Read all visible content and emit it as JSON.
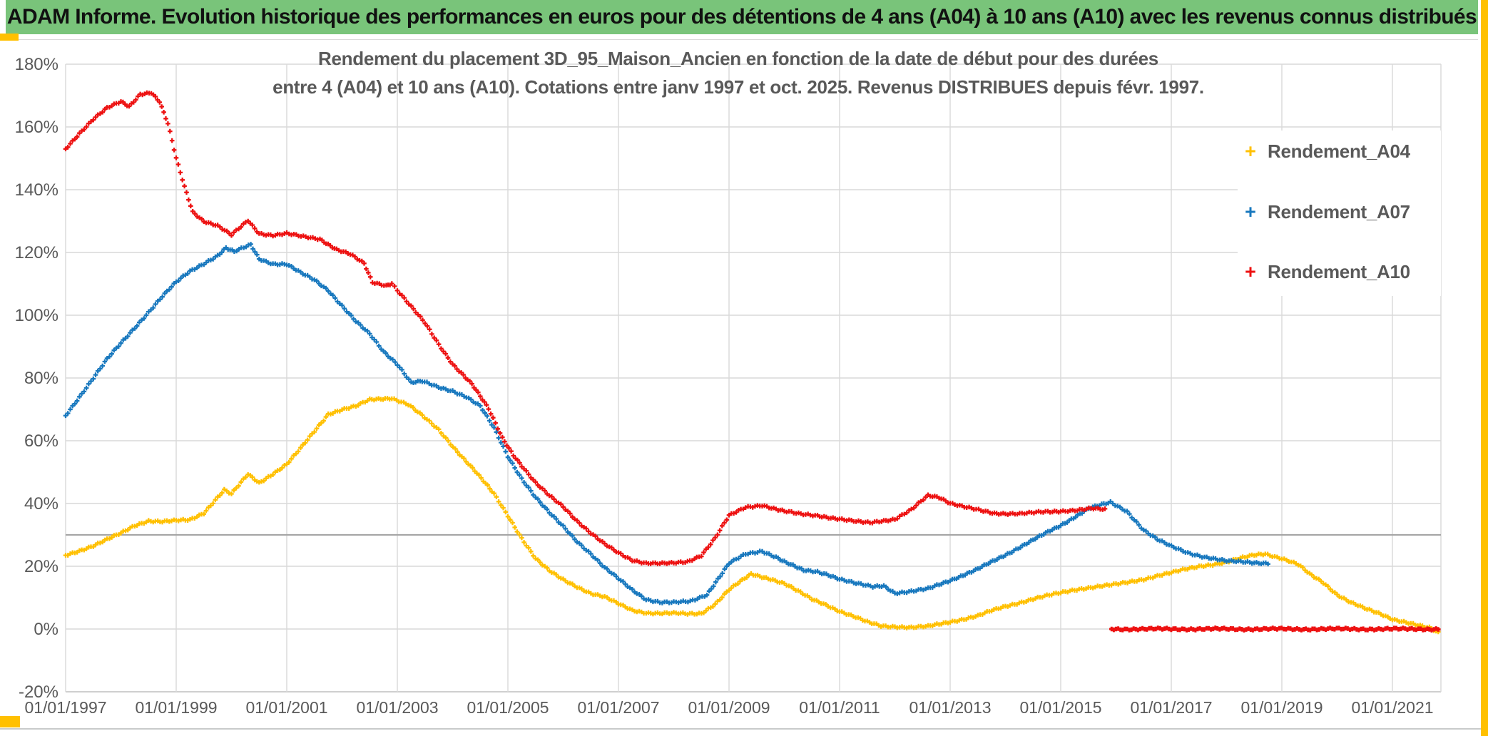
{
  "title_bar": {
    "text": "ADAM Informe. Evolution historique des performances en euros pour des détentions de 4 ans (A04) à 10 ans (A10) avec les revenus connus distribués",
    "bg_color": "#79C47A"
  },
  "frame": {
    "accent_color": "#FFC000"
  },
  "chart_data": {
    "type": "scatter",
    "marker_style": "plus",
    "title_lines": [
      "Rendement du placement 3D_95_Maison_Ancien en fonction de la date de début pour des durées",
      "entre 4 (A04) et 10 ans (A10). Cotations entre janv 1997 et oct. 2025. Revenus DISTRIBUES depuis févr. 1997."
    ],
    "title_color": "#595959",
    "x_axis": {
      "tick_labels": [
        "01/01/1997",
        "01/01/1999",
        "01/01/2001",
        "01/01/2003",
        "01/01/2005",
        "01/01/2007",
        "01/01/2009",
        "01/01/2011",
        "01/01/2013",
        "01/01/2015",
        "01/01/2017",
        "01/01/2019",
        "01/01/2021"
      ],
      "tick_years": [
        1997,
        1999,
        2001,
        2003,
        2005,
        2007,
        2009,
        2011,
        2013,
        2015,
        2017,
        2019,
        2021
      ],
      "min_year": 1997.0,
      "max_year": 2021.87
    },
    "y_axis": {
      "tick_labels": [
        "180%",
        "160%",
        "140%",
        "120%",
        "100%",
        "80%",
        "60%",
        "40%",
        "20%",
        "0%",
        "-20%"
      ],
      "tick_values": [
        180,
        160,
        140,
        120,
        100,
        80,
        60,
        40,
        20,
        0,
        -20
      ],
      "min": -20,
      "max": 180
    },
    "grid": {
      "color": "#D9D9D9",
      "axis_color": "#BFBFBF",
      "reference_line_value": 30,
      "reference_line_color": "#A6A6A6"
    },
    "legend": {
      "position": "right",
      "items": [
        {
          "label": "Rendement_A04",
          "color": "#FFC000"
        },
        {
          "label": "Rendement_A07",
          "color": "#1878BE"
        },
        {
          "label": "Rendement_A10",
          "color": "#ED1111"
        }
      ]
    },
    "series": [
      {
        "name": "Rendement_A04",
        "color": "#FFC000",
        "points": [
          [
            1997.0,
            23.5
          ],
          [
            1997.25,
            25
          ],
          [
            1997.5,
            26.5
          ],
          [
            1997.75,
            28.5
          ],
          [
            1998.0,
            30.5
          ],
          [
            1998.25,
            33
          ],
          [
            1998.5,
            34.5
          ],
          [
            1998.75,
            34.2
          ],
          [
            1999.0,
            34.5
          ],
          [
            1999.25,
            34.8
          ],
          [
            1999.5,
            37
          ],
          [
            1999.75,
            42
          ],
          [
            1999.87,
            44.3
          ],
          [
            2000.0,
            43
          ],
          [
            2000.3,
            49.3
          ],
          [
            2000.5,
            46.6
          ],
          [
            2000.75,
            49.5
          ],
          [
            2001.0,
            52.5
          ],
          [
            2001.25,
            57.5
          ],
          [
            2001.5,
            63
          ],
          [
            2001.75,
            68.5
          ],
          [
            2002.0,
            70
          ],
          [
            2002.25,
            71
          ],
          [
            2002.5,
            73
          ],
          [
            2002.9,
            73.6
          ],
          [
            2003.2,
            71.6
          ],
          [
            2003.45,
            68
          ],
          [
            2003.75,
            63.4
          ],
          [
            2004.05,
            57.3
          ],
          [
            2004.4,
            50.5
          ],
          [
            2004.75,
            43
          ],
          [
            2005.0,
            36.1
          ],
          [
            2005.25,
            29
          ],
          [
            2005.5,
            22.5
          ],
          [
            2005.75,
            18.5
          ],
          [
            2006.0,
            15.7
          ],
          [
            2006.25,
            13.5
          ],
          [
            2006.5,
            11.4
          ],
          [
            2006.75,
            10.2
          ],
          [
            2007.0,
            8
          ],
          [
            2007.25,
            6
          ],
          [
            2007.5,
            5.2
          ],
          [
            2007.75,
            5
          ],
          [
            2008.0,
            5
          ],
          [
            2008.25,
            4.8
          ],
          [
            2008.5,
            5
          ],
          [
            2008.75,
            8
          ],
          [
            2009.0,
            12.5
          ],
          [
            2009.4,
            17.5
          ],
          [
            2009.75,
            16
          ],
          [
            2010.0,
            14.5
          ],
          [
            2010.25,
            12
          ],
          [
            2010.5,
            9.5
          ],
          [
            2010.75,
            7.8
          ],
          [
            2011.0,
            5.7
          ],
          [
            2011.25,
            4
          ],
          [
            2011.5,
            2.2
          ],
          [
            2011.75,
            1
          ],
          [
            2012.0,
            0.8
          ],
          [
            2012.3,
            0.5
          ],
          [
            2012.6,
            0.8
          ],
          [
            2013.0,
            2.3
          ],
          [
            2013.25,
            3.2
          ],
          [
            2013.5,
            4.2
          ],
          [
            2013.75,
            5.8
          ],
          [
            2014.0,
            7.2
          ],
          [
            2014.25,
            8.4
          ],
          [
            2014.5,
            9.6
          ],
          [
            2014.75,
            10.6
          ],
          [
            2015.0,
            11.5
          ],
          [
            2015.25,
            12.5
          ],
          [
            2015.5,
            13.2
          ],
          [
            2015.75,
            13.7
          ],
          [
            2016.0,
            14.2
          ],
          [
            2016.25,
            15
          ],
          [
            2016.5,
            15.9
          ],
          [
            2016.75,
            17
          ],
          [
            2017.0,
            17.9
          ],
          [
            2017.25,
            19
          ],
          [
            2017.5,
            20
          ],
          [
            2017.75,
            20.6
          ],
          [
            2018.0,
            21.3
          ],
          [
            2018.25,
            22.5
          ],
          [
            2018.5,
            23.6
          ],
          [
            2018.7,
            24
          ],
          [
            2019.0,
            22.5
          ],
          [
            2019.3,
            20.5
          ],
          [
            2019.5,
            17.5
          ],
          [
            2019.75,
            14.8
          ],
          [
            2020.0,
            11
          ],
          [
            2020.25,
            8.5
          ],
          [
            2020.5,
            6.5
          ],
          [
            2020.75,
            5
          ],
          [
            2021.0,
            3.2
          ],
          [
            2021.25,
            2.2
          ],
          [
            2021.5,
            1
          ],
          [
            2021.67,
            0.3
          ],
          [
            2021.83,
            -1.2
          ]
        ]
      },
      {
        "name": "Rendement_A07",
        "color": "#1878BE",
        "points": [
          [
            1997.0,
            68
          ],
          [
            1997.25,
            74
          ],
          [
            1997.5,
            80
          ],
          [
            1997.75,
            86
          ],
          [
            1998.0,
            91
          ],
          [
            1998.25,
            96
          ],
          [
            1998.5,
            101
          ],
          [
            1998.75,
            106
          ],
          [
            1999.0,
            110.5
          ],
          [
            1999.25,
            114
          ],
          [
            1999.5,
            116.5
          ],
          [
            1999.75,
            119
          ],
          [
            1999.9,
            121.4
          ],
          [
            2000.05,
            120.2
          ],
          [
            2000.35,
            122.5
          ],
          [
            2000.5,
            118
          ],
          [
            2000.75,
            116.4
          ],
          [
            2001.0,
            116.2
          ],
          [
            2001.25,
            113.5
          ],
          [
            2001.5,
            111.3
          ],
          [
            2001.75,
            108
          ],
          [
            2002.0,
            103
          ],
          [
            2002.25,
            98
          ],
          [
            2002.5,
            94
          ],
          [
            2002.75,
            88.5
          ],
          [
            2003.0,
            84.5
          ],
          [
            2003.25,
            78.5
          ],
          [
            2003.45,
            78.9
          ],
          [
            2003.75,
            77
          ],
          [
            2004.0,
            75.9
          ],
          [
            2004.25,
            74
          ],
          [
            2004.5,
            71
          ],
          [
            2004.75,
            64
          ],
          [
            2005.0,
            55
          ],
          [
            2005.25,
            48
          ],
          [
            2005.5,
            42
          ],
          [
            2005.75,
            37
          ],
          [
            2006.0,
            32.7
          ],
          [
            2006.25,
            28
          ],
          [
            2006.5,
            24
          ],
          [
            2006.75,
            19.5
          ],
          [
            2007.0,
            16
          ],
          [
            2007.25,
            12.5
          ],
          [
            2007.5,
            9.5
          ],
          [
            2007.75,
            8.5
          ],
          [
            2008.0,
            8.4
          ],
          [
            2008.3,
            8.8
          ],
          [
            2008.6,
            11
          ],
          [
            2009.0,
            20.9
          ],
          [
            2009.3,
            23.8
          ],
          [
            2009.6,
            24.8
          ],
          [
            2009.85,
            23
          ],
          [
            2010.0,
            21.5
          ],
          [
            2010.35,
            18.6
          ],
          [
            2010.6,
            18.2
          ],
          [
            2010.8,
            17.3
          ],
          [
            2011.0,
            16
          ],
          [
            2011.3,
            14.5
          ],
          [
            2011.6,
            13.4
          ],
          [
            2011.8,
            13.8
          ],
          [
            2012.0,
            11.5
          ],
          [
            2012.3,
            12
          ],
          [
            2012.6,
            12.8
          ],
          [
            2013.0,
            15.5
          ],
          [
            2013.5,
            19.1
          ],
          [
            2014.0,
            23.6
          ],
          [
            2014.5,
            28.4
          ],
          [
            2015.0,
            33
          ],
          [
            2015.5,
            38.4
          ],
          [
            2015.9,
            40.3
          ],
          [
            2016.2,
            37.5
          ],
          [
            2016.5,
            31.6
          ],
          [
            2016.75,
            28.5
          ],
          [
            2017.0,
            26.3
          ],
          [
            2017.3,
            24.3
          ],
          [
            2017.6,
            23
          ],
          [
            2017.8,
            22.3
          ],
          [
            2018.0,
            21.6
          ],
          [
            2018.3,
            21.4
          ],
          [
            2018.5,
            21.2
          ],
          [
            2018.75,
            21
          ]
        ]
      },
      {
        "name": "Rendement_A10",
        "color": "#ED1111",
        "points": [
          [
            1997.0,
            153
          ],
          [
            1997.25,
            158
          ],
          [
            1997.5,
            162.5
          ],
          [
            1997.75,
            166
          ],
          [
            1998.0,
            168
          ],
          [
            1998.15,
            166.5
          ],
          [
            1998.35,
            170.5
          ],
          [
            1998.55,
            171
          ],
          [
            1998.7,
            168
          ],
          [
            1998.85,
            161
          ],
          [
            1999.0,
            150
          ],
          [
            1999.15,
            141
          ],
          [
            1999.3,
            133
          ],
          [
            1999.5,
            130
          ],
          [
            1999.75,
            128.5
          ],
          [
            2000.0,
            125.5
          ],
          [
            2000.3,
            130.2
          ],
          [
            2000.5,
            126.1
          ],
          [
            2000.75,
            125.5
          ],
          [
            2001.0,
            126
          ],
          [
            2001.3,
            125
          ],
          [
            2001.6,
            124.3
          ],
          [
            2001.9,
            121
          ],
          [
            2002.15,
            119.4
          ],
          [
            2002.4,
            116.4
          ],
          [
            2002.55,
            110.5
          ],
          [
            2002.8,
            109.5
          ],
          [
            2002.9,
            110.2
          ],
          [
            2003.0,
            108
          ],
          [
            2003.25,
            102.7
          ],
          [
            2003.5,
            97.5
          ],
          [
            2003.75,
            90.7
          ],
          [
            2004.0,
            84.5
          ],
          [
            2004.35,
            78
          ],
          [
            2004.65,
            70.2
          ],
          [
            2004.9,
            61
          ],
          [
            2005.1,
            55.5
          ],
          [
            2005.25,
            52
          ],
          [
            2005.5,
            46.5
          ],
          [
            2005.75,
            42.5
          ],
          [
            2006.0,
            39.1
          ],
          [
            2006.25,
            34.5
          ],
          [
            2006.5,
            30.5
          ],
          [
            2006.75,
            27
          ],
          [
            2007.0,
            24.3
          ],
          [
            2007.25,
            22
          ],
          [
            2007.5,
            21
          ],
          [
            2007.75,
            20.8
          ],
          [
            2008.0,
            21
          ],
          [
            2008.25,
            21.5
          ],
          [
            2008.5,
            23.5
          ],
          [
            2008.75,
            29
          ],
          [
            2009.0,
            36.1
          ],
          [
            2009.3,
            38.8
          ],
          [
            2009.6,
            39.5
          ],
          [
            2009.85,
            38.2
          ],
          [
            2010.0,
            37.5
          ],
          [
            2010.3,
            36.6
          ],
          [
            2010.6,
            36.2
          ],
          [
            2010.8,
            35.6
          ],
          [
            2011.0,
            35
          ],
          [
            2011.3,
            34.2
          ],
          [
            2011.55,
            33.9
          ],
          [
            2011.8,
            34.6
          ],
          [
            2012.0,
            35
          ],
          [
            2012.3,
            38
          ],
          [
            2012.6,
            42.5
          ],
          [
            2012.8,
            42
          ],
          [
            2013.0,
            40.2
          ],
          [
            2013.3,
            38.8
          ],
          [
            2013.6,
            37.5
          ],
          [
            2013.8,
            36.8
          ],
          [
            2014.0,
            36.8
          ],
          [
            2014.3,
            36.9
          ],
          [
            2014.6,
            37.2
          ],
          [
            2014.85,
            37.3
          ],
          [
            2015.0,
            37.5
          ],
          [
            2015.3,
            38
          ],
          [
            2015.55,
            38.5
          ],
          [
            2015.8,
            38
          ]
        ],
        "pending_zero_segment": {
          "from_year": 2015.92,
          "to_year": 2021.83,
          "value": 0
        }
      }
    ]
  }
}
